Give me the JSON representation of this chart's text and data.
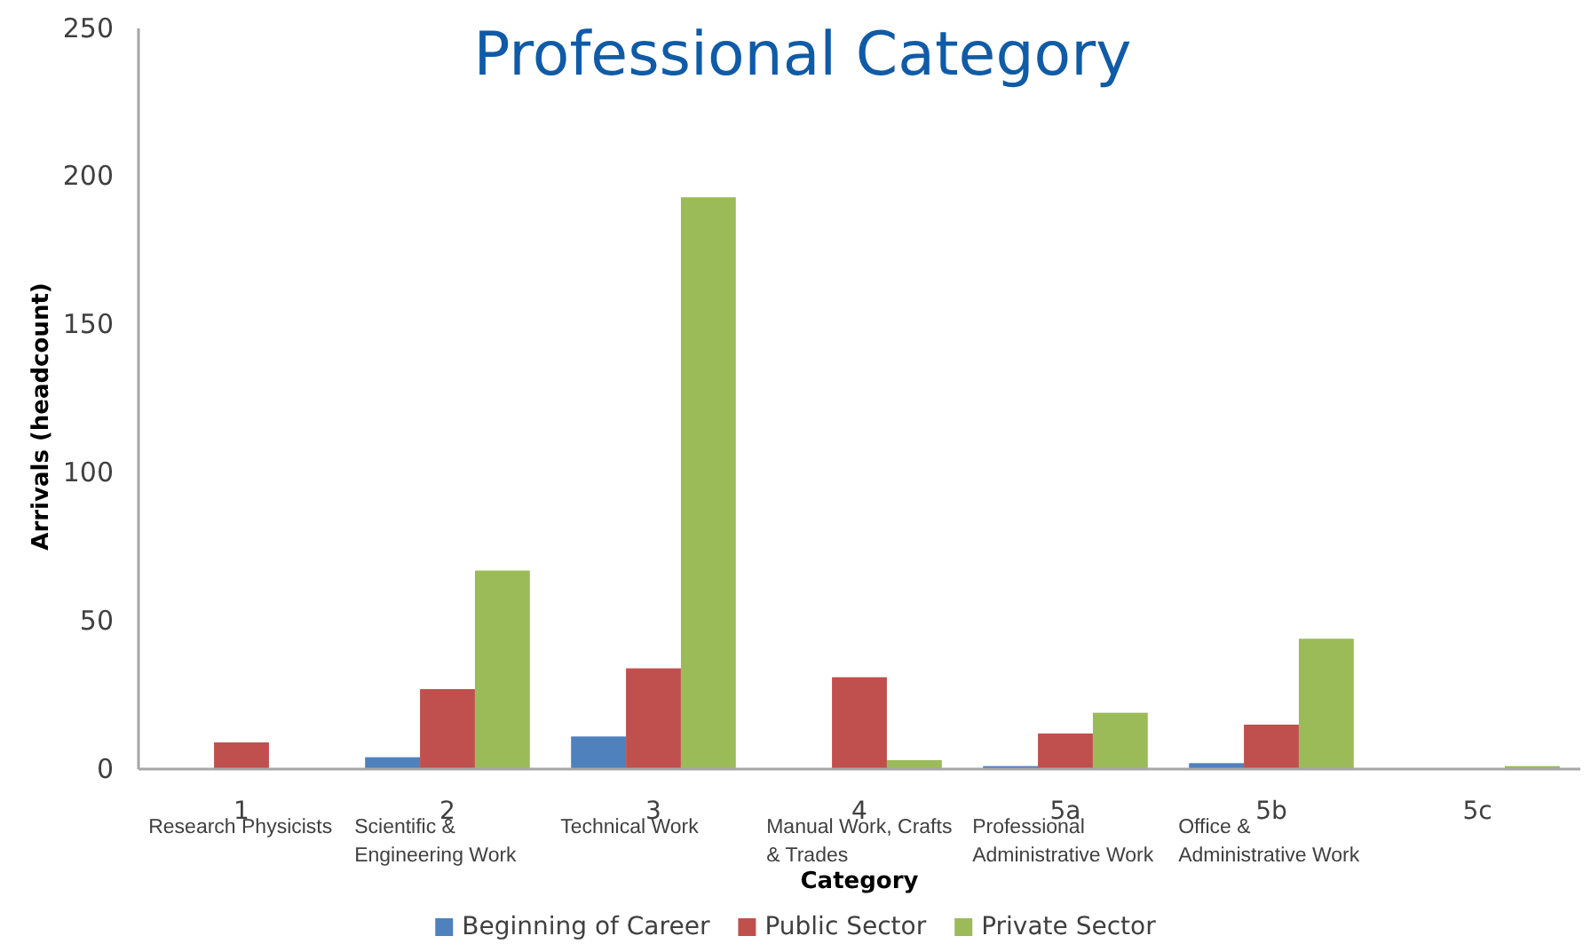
{
  "chart_data": {
    "type": "bar",
    "title": "Professional Category",
    "xlabel": "Category",
    "ylabel": "Arrivals (headcount)",
    "categories": [
      "1\nResearch Physicists",
      "2\nScientific &\nEngineering Work",
      "3\nTechnical Work",
      "4\nManual Work, Crafts\n& Trades",
      "5a\nProfessional\nAdministrative Work",
      "5b\nOffice &\nAdministrative Work",
      "5c"
    ],
    "series": [
      {
        "name": "Beginning of Career",
        "color": "#4f81bd",
        "values": [
          0,
          4,
          11,
          0,
          1,
          2,
          0
        ]
      },
      {
        "name": "Public Sector",
        "color": "#c0504d",
        "values": [
          9,
          27,
          34,
          31,
          12,
          15,
          0
        ]
      },
      {
        "name": "Private Sector",
        "color": "#9bbb59",
        "values": [
          0,
          67,
          193,
          3,
          19,
          44,
          1
        ]
      }
    ],
    "ylim": [
      0,
      250
    ],
    "yticks": [
      0,
      50,
      100,
      150,
      200,
      250
    ],
    "grid": false,
    "legend": "bottom"
  }
}
